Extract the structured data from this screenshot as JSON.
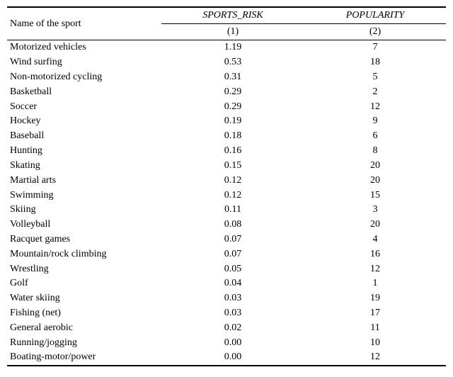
{
  "page": {
    "background": "#ffffff",
    "text_color": "#000000"
  },
  "table": {
    "name_column_header": "Name of the sport",
    "group_headers": [
      {
        "label": "SPORTS_RISK"
      },
      {
        "label": "POPULARITY"
      }
    ],
    "subheaders": [
      "(1)",
      "(2)"
    ],
    "rows": [
      {
        "name": "Motorized vehicles",
        "sports_risk": "1.19",
        "popularity": "7"
      },
      {
        "name": "Wind surfing",
        "sports_risk": "0.53",
        "popularity": "18"
      },
      {
        "name": "Non-motorized cycling",
        "sports_risk": "0.31",
        "popularity": "5"
      },
      {
        "name": "Basketball",
        "sports_risk": "0.29",
        "popularity": "2"
      },
      {
        "name": "Soccer",
        "sports_risk": "0.29",
        "popularity": "12"
      },
      {
        "name": "Hockey",
        "sports_risk": "0.19",
        "popularity": "9"
      },
      {
        "name": "Baseball",
        "sports_risk": "0.18",
        "popularity": "6"
      },
      {
        "name": "Hunting",
        "sports_risk": "0.16",
        "popularity": "8"
      },
      {
        "name": "Skating",
        "sports_risk": "0.15",
        "popularity": "20"
      },
      {
        "name": "Martial arts",
        "sports_risk": "0.12",
        "popularity": "20"
      },
      {
        "name": "Swimming",
        "sports_risk": "0.12",
        "popularity": "15"
      },
      {
        "name": "Skiing",
        "sports_risk": "0.11",
        "popularity": "3"
      },
      {
        "name": "Volleyball",
        "sports_risk": "0.08",
        "popularity": "20"
      },
      {
        "name": "Racquet games",
        "sports_risk": "0.07",
        "popularity": "4"
      },
      {
        "name": "Mountain/rock climbing",
        "sports_risk": "0.07",
        "popularity": "16"
      },
      {
        "name": "Wrestling",
        "sports_risk": "0.05",
        "popularity": "12"
      },
      {
        "name": "Golf",
        "sports_risk": "0.04",
        "popularity": "1"
      },
      {
        "name": "Water skiing",
        "sports_risk": "0.03",
        "popularity": "19"
      },
      {
        "name": "Fishing (net)",
        "sports_risk": "0.03",
        "popularity": "17"
      },
      {
        "name": "General aerobic",
        "sports_risk": "0.02",
        "popularity": "11"
      },
      {
        "name": "Running/jogging",
        "sports_risk": "0.00",
        "popularity": "10"
      },
      {
        "name": "Boating-motor/power",
        "sports_risk": "0.00",
        "popularity": "12"
      }
    ]
  },
  "chart_data": {
    "type": "table",
    "columns": [
      "Name of the sport",
      "SPORTS_RISK (1)",
      "POPULARITY (2)"
    ],
    "rows": [
      [
        "Motorized vehicles",
        1.19,
        7
      ],
      [
        "Wind surfing",
        0.53,
        18
      ],
      [
        "Non-motorized cycling",
        0.31,
        5
      ],
      [
        "Basketball",
        0.29,
        2
      ],
      [
        "Soccer",
        0.29,
        12
      ],
      [
        "Hockey",
        0.19,
        9
      ],
      [
        "Baseball",
        0.18,
        6
      ],
      [
        "Hunting",
        0.16,
        8
      ],
      [
        "Skating",
        0.15,
        20
      ],
      [
        "Martial arts",
        0.12,
        20
      ],
      [
        "Swimming",
        0.12,
        15
      ],
      [
        "Skiing",
        0.11,
        3
      ],
      [
        "Volleyball",
        0.08,
        20
      ],
      [
        "Racquet games",
        0.07,
        4
      ],
      [
        "Mountain/rock climbing",
        0.07,
        16
      ],
      [
        "Wrestling",
        0.05,
        12
      ],
      [
        "Golf",
        0.04,
        1
      ],
      [
        "Water skiing",
        0.03,
        19
      ],
      [
        "Fishing (net)",
        0.03,
        17
      ],
      [
        "General aerobic",
        0.02,
        11
      ],
      [
        "Running/jogging",
        0.0,
        10
      ],
      [
        "Boating-motor/power",
        0.0,
        12
      ]
    ]
  }
}
